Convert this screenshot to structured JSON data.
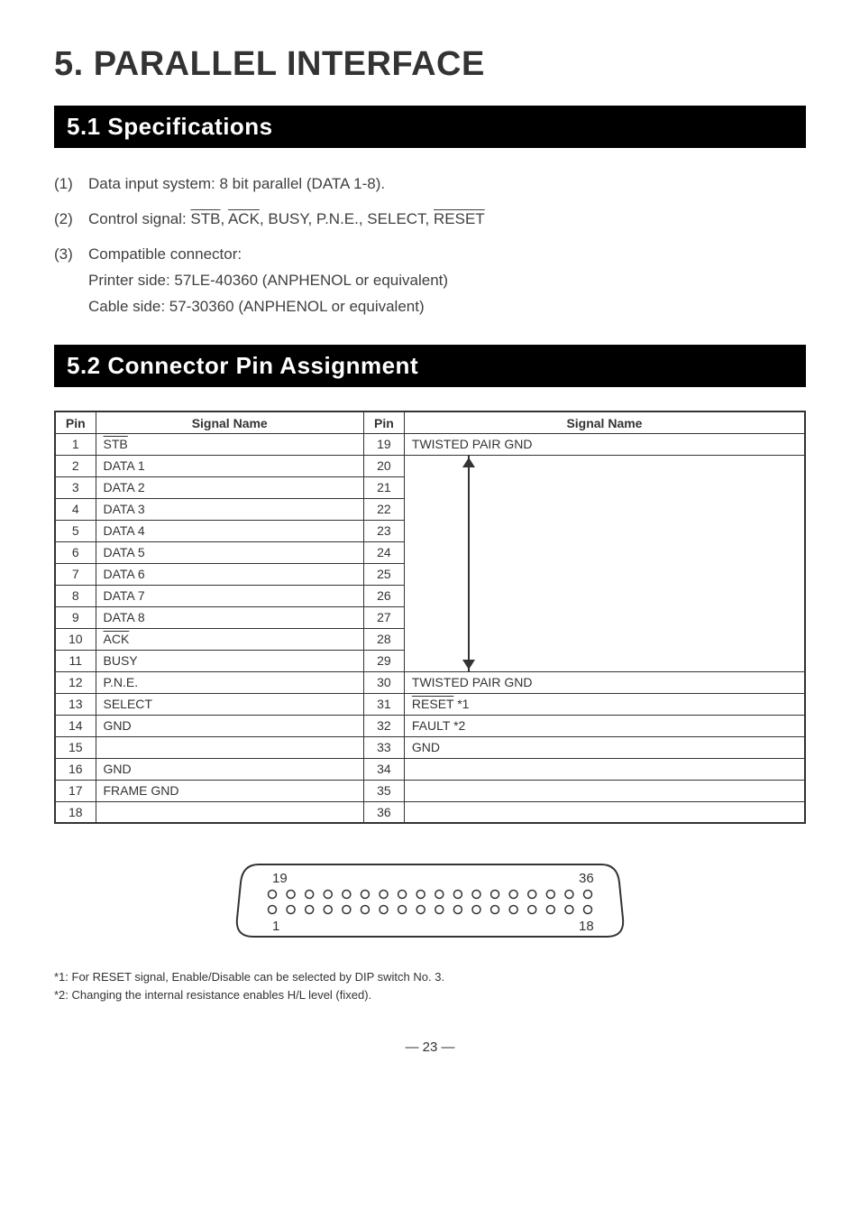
{
  "heading": "5.  PARALLEL INTERFACE",
  "section1": {
    "title": "5.1 Specifications",
    "items": [
      {
        "num": "(1)",
        "text": "Data input system: 8 bit parallel (DATA 1-8)."
      },
      {
        "num": "(2)",
        "prefix": "Control signal: ",
        "sig1": "STB",
        "sep1": ", ",
        "sig2": "ACK",
        "mid": ", BUSY, P.N.E., SELECT, ",
        "sig3": "RESET"
      },
      {
        "num": "(3)",
        "line1": "Compatible connector:",
        "line2": "Printer side: 57LE-40360 (ANPHENOL or equivalent)",
        "line3": "Cable side: 57-30360 (ANPHENOL or equivalent)"
      }
    ]
  },
  "section2": {
    "title": "5.2  Connector Pin Assignment",
    "headers": {
      "pin": "Pin",
      "signal": "Signal Name"
    },
    "rows_left": [
      {
        "pin": "1",
        "name": "STB",
        "overline": true
      },
      {
        "pin": "2",
        "name": "DATA 1"
      },
      {
        "pin": "3",
        "name": "DATA 2"
      },
      {
        "pin": "4",
        "name": "DATA 3"
      },
      {
        "pin": "5",
        "name": "DATA 4"
      },
      {
        "pin": "6",
        "name": "DATA 5"
      },
      {
        "pin": "7",
        "name": "DATA 6"
      },
      {
        "pin": "8",
        "name": "DATA 7"
      },
      {
        "pin": "9",
        "name": "DATA 8"
      },
      {
        "pin": "10",
        "name": "ACK",
        "overline": true
      },
      {
        "pin": "11",
        "name": "BUSY"
      },
      {
        "pin": "12",
        "name": "P.N.E."
      },
      {
        "pin": "13",
        "name": "SELECT"
      },
      {
        "pin": "14",
        "name": "GND"
      },
      {
        "pin": "15",
        "name": ""
      },
      {
        "pin": "16",
        "name": "GND"
      },
      {
        "pin": "17",
        "name": "FRAME GND"
      },
      {
        "pin": "18",
        "name": ""
      }
    ],
    "rows_right": [
      {
        "pin": "19",
        "name": "TWISTED PAIR GND"
      },
      {
        "pin": "20",
        "arrow": "up"
      },
      {
        "pin": "21",
        "arrow": "mid"
      },
      {
        "pin": "22",
        "arrow": "mid"
      },
      {
        "pin": "23",
        "arrow": "mid"
      },
      {
        "pin": "24",
        "arrow": "mid"
      },
      {
        "pin": "25",
        "arrow": "mid"
      },
      {
        "pin": "26",
        "arrow": "mid"
      },
      {
        "pin": "27",
        "arrow": "mid"
      },
      {
        "pin": "28",
        "arrow": "mid"
      },
      {
        "pin": "29",
        "arrow": "down"
      },
      {
        "pin": "30",
        "name": "TWISTED PAIR GND"
      },
      {
        "pin": "31",
        "name": "RESET",
        "overline": true,
        "suffix": " *1"
      },
      {
        "pin": "32",
        "name": "FAULT *2"
      },
      {
        "pin": "33",
        "name": "GND"
      },
      {
        "pin": "34",
        "name": ""
      },
      {
        "pin": "35",
        "name": ""
      },
      {
        "pin": "36",
        "name": ""
      }
    ]
  },
  "connector": {
    "top_left": "19",
    "top_right": "36",
    "bottom_left": "1",
    "bottom_right": "18",
    "pins_per_row": 18
  },
  "footnotes": [
    "*1: For RESET signal, Enable/Disable can be selected by DIP switch No. 3.",
    "*2: Changing the internal resistance enables H/L level (fixed)."
  ],
  "page_number": "— 23 —"
}
